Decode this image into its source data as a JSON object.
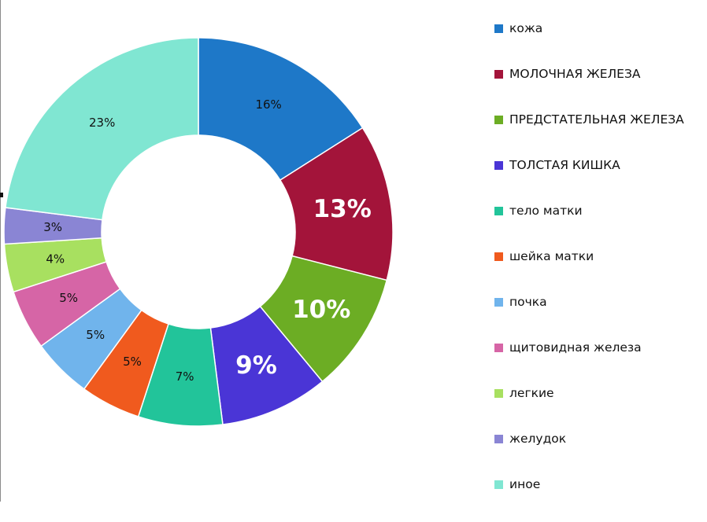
{
  "chart_data": {
    "type": "pie",
    "style": "donut",
    "legend_position": "right",
    "categories": [
      "кожа",
      "МОЛОЧНАЯ ЖЕЛЕЗА",
      "ПРЕДСТАТЕЛЬНАЯ ЖЕЛЕЗА",
      "ТОЛСТАЯ КИШКА",
      "тело матки",
      "шейка матки",
      "почка",
      "щитовидная железа",
      "легкие",
      "желудок",
      "иное"
    ],
    "values": [
      16,
      13,
      10,
      9,
      7,
      5,
      5,
      5,
      4,
      3,
      23
    ],
    "labels": [
      "16%",
      "13%",
      "10%",
      "9%",
      "7%",
      "5%",
      "5%",
      "5%",
      "4%",
      "3%",
      "23%"
    ],
    "colors": [
      "#1e78c8",
      "#a3143a",
      "#6cad24",
      "#4a35d6",
      "#22c49a",
      "#f05a1e",
      "#70b4ec",
      "#d665a6",
      "#a8e060",
      "#8a85d4",
      "#80e6d2"
    ],
    "highlighted": [
      false,
      true,
      true,
      true,
      false,
      false,
      false,
      false,
      false,
      false,
      false
    ]
  }
}
